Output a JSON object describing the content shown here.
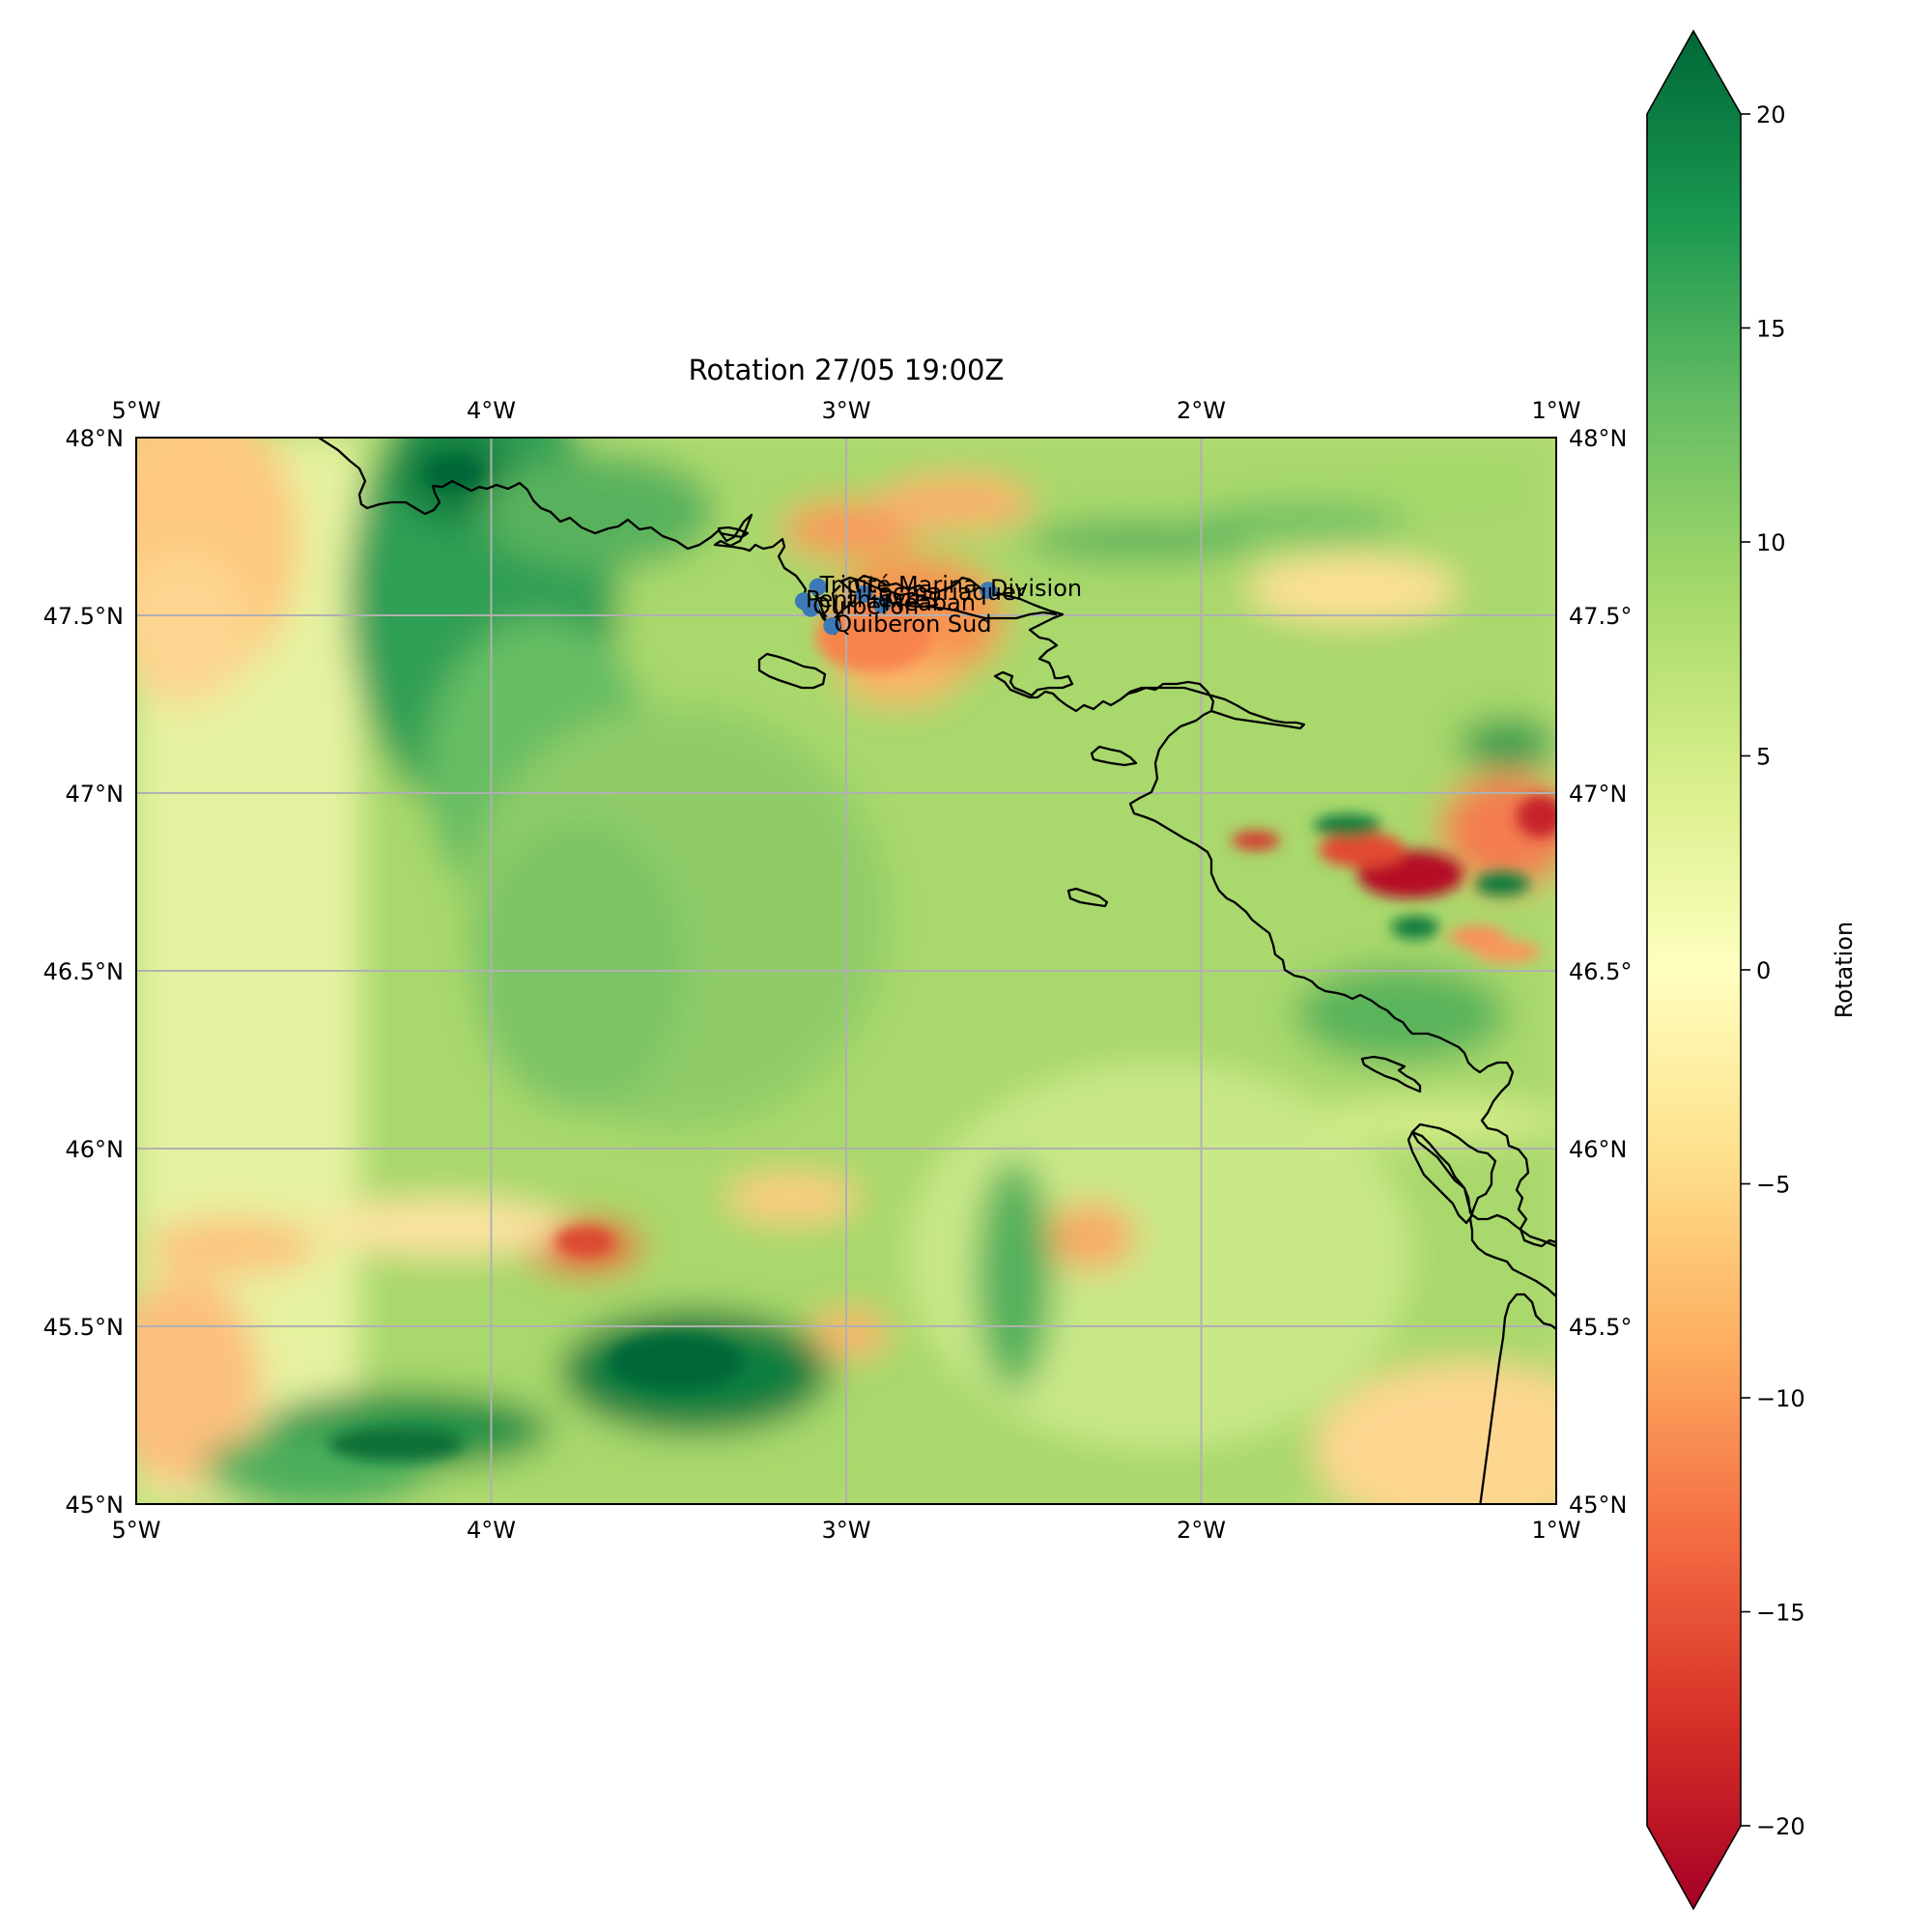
{
  "map": {
    "title": "Rotation 27/05 19:00Z",
    "lon_range": [
      -5,
      -1
    ],
    "lat_range": [
      45,
      48
    ],
    "lon_ticks": [
      {
        "value": -5,
        "label": "5°W"
      },
      {
        "value": -4,
        "label": "4°W"
      },
      {
        "value": -3,
        "label": "3°W"
      },
      {
        "value": -2,
        "label": "2°W"
      },
      {
        "value": -1,
        "label": "1°W"
      }
    ],
    "lat_ticks_left": [
      {
        "value": 48,
        "label": "48°N"
      },
      {
        "value": 47.5,
        "label": "47.5°N"
      },
      {
        "value": 47,
        "label": "47°N"
      },
      {
        "value": 46.5,
        "label": "46.5°N"
      },
      {
        "value": 46,
        "label": "46°N"
      },
      {
        "value": 45.5,
        "label": "45.5°N"
      },
      {
        "value": 45,
        "label": "45°N"
      }
    ],
    "lat_ticks_right": [
      {
        "value": 48,
        "label": "48°N"
      },
      {
        "value": 47.5,
        "label": "47.5°"
      },
      {
        "value": 47,
        "label": "47°N"
      },
      {
        "value": 46.5,
        "label": "46.5°"
      },
      {
        "value": 46,
        "label": "46°N"
      },
      {
        "value": 45.5,
        "label": "45.5°"
      },
      {
        "value": 45,
        "label": "45°N"
      }
    ],
    "gridlines": true,
    "stations": [
      {
        "name": "Trinité Marina",
        "lon": -3.08,
        "lat": 47.58
      },
      {
        "name": "Division",
        "lon": -2.6,
        "lat": 47.57
      },
      {
        "name": "Locmariaquer",
        "lon": -2.95,
        "lat": 47.56
      },
      {
        "name": "Meaban",
        "lon": -2.9,
        "lat": 47.53
      },
      {
        "name": "Penthièvre",
        "lon": -3.12,
        "lat": 47.54
      },
      {
        "name": "Quiberon",
        "lon": -3.1,
        "lat": 47.52
      },
      {
        "name": "Quiberon Sud",
        "lon": -3.04,
        "lat": 47.47
      }
    ],
    "station_color": "#3d7ab5"
  },
  "colorbar": {
    "label": "Rotation",
    "cmap": "RdYlGn",
    "min": -20,
    "max": 20,
    "extend": "both",
    "ticks": [
      {
        "value": 20,
        "label": "20"
      },
      {
        "value": 15,
        "label": "15"
      },
      {
        "value": 10,
        "label": "10"
      },
      {
        "value": 5,
        "label": "5"
      },
      {
        "value": 0,
        "label": "0"
      },
      {
        "value": -5,
        "label": "−5"
      },
      {
        "value": -10,
        "label": "−10"
      },
      {
        "value": -15,
        "label": "−15"
      },
      {
        "value": -20,
        "label": "−20"
      }
    ],
    "stops": [
      "#a50026",
      "#d73027",
      "#f46d43",
      "#fdae61",
      "#fee08b",
      "#ffffbf",
      "#d9ef8b",
      "#a6d96a",
      "#66bd63",
      "#1a9850",
      "#006837"
    ]
  }
}
